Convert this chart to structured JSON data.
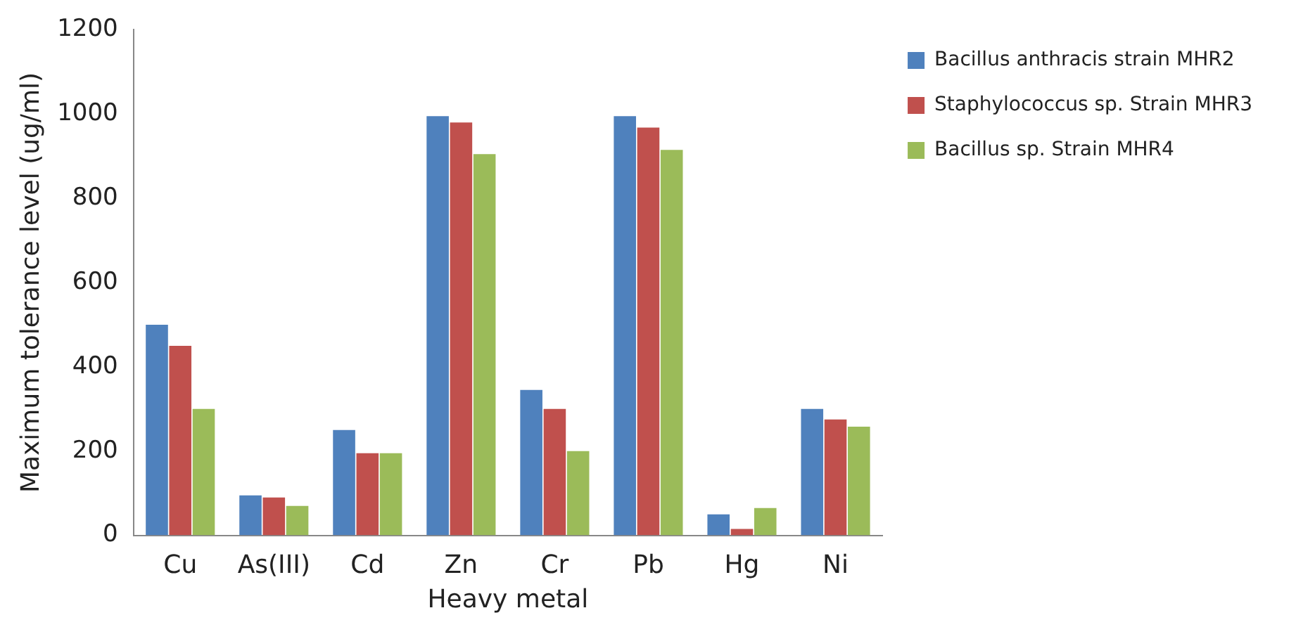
{
  "chart_data": {
    "type": "bar",
    "xlabel": "Heavy metal",
    "ylabel": "Maximum tolerance level (ug/ml)",
    "categories": [
      "Cu",
      "As(III)",
      "Cd",
      "Zn",
      "Cr",
      "Pb",
      "Hg",
      "Ni"
    ],
    "series": [
      {
        "name": "Bacillus anthracis strain MHR2",
        "color": "#4f81bd",
        "values": [
          500,
          95,
          250,
          995,
          345,
          995,
          50,
          300
        ]
      },
      {
        "name": "Staphylococcus sp. Strain MHR3",
        "color": "#c0504d",
        "values": [
          450,
          90,
          195,
          980,
          300,
          968,
          15,
          275
        ]
      },
      {
        "name": "Bacillus sp. Strain MHR4",
        "color": "#9bbb59",
        "values": [
          300,
          70,
          195,
          905,
          200,
          915,
          65,
          258
        ]
      }
    ],
    "ylim": [
      0,
      1200
    ],
    "yticks": [
      0,
      200,
      400,
      600,
      800,
      1000,
      1200
    ],
    "grid": false,
    "legend": "top right"
  }
}
